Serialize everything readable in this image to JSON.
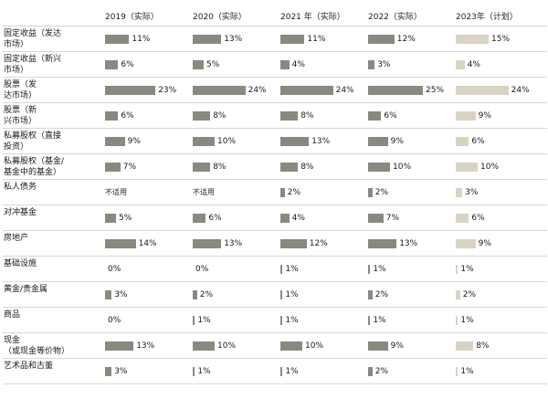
{
  "table": {
    "columns": [
      "2019（实际）",
      "2020（实际）",
      "2021 年（实际）",
      "2022（实际）",
      "2023年（计划）"
    ],
    "na_label": "不适用",
    "rows": [
      {
        "label": "固定收益（发达\n市场）",
        "values": [
          "11%",
          "13%",
          "11%",
          "12%",
          "15%"
        ]
      },
      {
        "label": "固定收益（新兴\n市场）",
        "values": [
          "6%",
          "5%",
          "4%",
          "3%",
          "4%"
        ]
      },
      {
        "label": "股票（发\n达市场）",
        "values": [
          "23%",
          "24%",
          "24%",
          "25%",
          "24%"
        ]
      },
      {
        "label": "股票（新\n兴市场）",
        "values": [
          "6%",
          "8%",
          "8%",
          "6%",
          "9%"
        ]
      },
      {
        "label": "私募股权（直接\n投资）",
        "values": [
          "9%",
          "10%",
          "13%",
          "9%",
          "6%"
        ]
      },
      {
        "label": "私募股权（基金/\n基金中的基金）",
        "values": [
          "7%",
          "8%",
          "8%",
          "10%",
          "10%"
        ]
      },
      {
        "label": "私人债务",
        "values": [
          "不适用",
          "不适用",
          "2%",
          "2%",
          "3%"
        ]
      },
      {
        "label": "对冲基金",
        "values": [
          "5%",
          "6%",
          "4%",
          "7%",
          "6%"
        ]
      },
      {
        "label": "房地产",
        "values": [
          "14%",
          "13%",
          "12%",
          "13%",
          "9%"
        ]
      },
      {
        "label": "基础设施",
        "values": [
          "0%",
          "0%",
          "1%",
          "1%",
          "1%"
        ]
      },
      {
        "label": "黄金/贵金属",
        "values": [
          "3%",
          "2%",
          "1%",
          "2%",
          "2%"
        ]
      },
      {
        "label": "商品",
        "values": [
          "0%",
          "1%",
          "1%",
          "1%",
          "1%"
        ]
      },
      {
        "label": "现金\n（或现金等价物）",
        "values": [
          "13%",
          "10%",
          "10%",
          "9%",
          "8%"
        ]
      },
      {
        "label": "艺术品和古董",
        "values": [
          "3%",
          "1%",
          "1%",
          "2%",
          "1%"
        ]
      }
    ]
  },
  "colors": {
    "bar_actual": "#8a897f",
    "bar_plan": "#d9d3c3",
    "separator": "#d8d8d6",
    "text": "#1a1a1a"
  },
  "chart_data": {
    "type": "bar",
    "orientation": "horizontal",
    "unit": "%",
    "title": "",
    "xlabel": "",
    "ylabel": "",
    "xlim": [
      0,
      25
    ],
    "grid": false,
    "legend_position": "column-headers",
    "na_text": "不适用",
    "categories": [
      "固定收益（发达市场）",
      "固定收益（新兴市场）",
      "股票（发达市场）",
      "股票（新兴市场）",
      "私募股权（直接投资）",
      "私募股权（基金/基金中的基金）",
      "私人债务",
      "对冲基金",
      "房地产",
      "基础设施",
      "黄金/贵金属",
      "商品",
      "现金（或现金等价物）",
      "艺术品和古董"
    ],
    "series": [
      {
        "name": "2019（实际）",
        "color": "#8a897f",
        "values": [
          11,
          6,
          23,
          6,
          9,
          7,
          null,
          5,
          14,
          0,
          3,
          0,
          13,
          3
        ]
      },
      {
        "name": "2020（实际）",
        "color": "#8a897f",
        "values": [
          13,
          5,
          24,
          8,
          10,
          8,
          null,
          6,
          13,
          0,
          2,
          1,
          10,
          1
        ]
      },
      {
        "name": "2021 年（实际）",
        "color": "#8a897f",
        "values": [
          11,
          4,
          24,
          8,
          13,
          8,
          2,
          4,
          12,
          1,
          1,
          1,
          10,
          1
        ]
      },
      {
        "name": "2022（实际）",
        "color": "#8a897f",
        "values": [
          12,
          3,
          25,
          6,
          9,
          10,
          2,
          7,
          13,
          1,
          2,
          1,
          9,
          2
        ]
      },
      {
        "name": "2023年（计划）",
        "color": "#d9d3c3",
        "values": [
          15,
          4,
          24,
          9,
          6,
          10,
          3,
          6,
          9,
          1,
          2,
          1,
          8,
          1
        ]
      }
    ]
  }
}
